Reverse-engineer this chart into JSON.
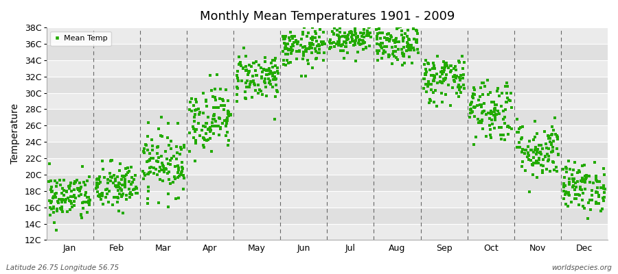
{
  "title": "Monthly Mean Temperatures 1901 - 2009",
  "ylabel": "Temperature",
  "subtitle_left": "Latitude 26.75 Longitude 56.75",
  "subtitle_right": "worldspecies.org",
  "legend_label": "Mean Temp",
  "marker_color": "#22aa00",
  "bg_light": "#e8e8e8",
  "bg_dark": "#d8d8d8",
  "months": [
    "Jan",
    "Feb",
    "Mar",
    "Apr",
    "May",
    "Jun",
    "Jul",
    "Aug",
    "Sep",
    "Oct",
    "Nov",
    "Dec"
  ],
  "ylim": [
    12,
    38
  ],
  "yticks": [
    12,
    14,
    16,
    18,
    20,
    22,
    24,
    26,
    28,
    30,
    32,
    34,
    36,
    38
  ],
  "ytick_labels": [
    "12C",
    "14C",
    "16C",
    "18C",
    "20C",
    "22C",
    "24C",
    "26C",
    "28C",
    "30C",
    "32C",
    "34C",
    "36C",
    "38C"
  ],
  "num_years": 109,
  "monthly_means": [
    17.2,
    18.5,
    21.5,
    27.0,
    32.0,
    35.5,
    36.8,
    35.8,
    31.8,
    28.0,
    23.0,
    18.5
  ],
  "monthly_std": [
    1.5,
    1.5,
    2.0,
    2.0,
    1.5,
    1.2,
    1.0,
    1.2,
    1.5,
    2.0,
    1.8,
    1.5
  ],
  "seed": 42,
  "dashes": [
    5,
    4
  ]
}
